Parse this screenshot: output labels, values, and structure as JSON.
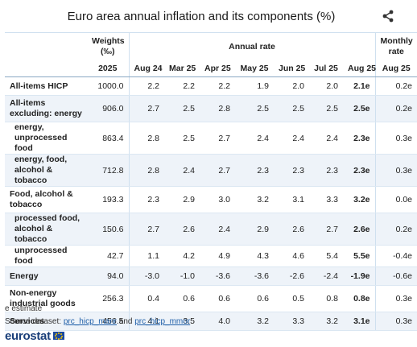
{
  "title": "Euro area annual inflation and its components (%)",
  "icons": {
    "share": "share-icon"
  },
  "headers": {
    "weights": "Weights (‰)",
    "annual_rate": "Annual rate",
    "monthly_rate": "Monthly rate",
    "weights_year": "2025",
    "months": [
      "Aug 24",
      "Mar 25",
      "Apr 25",
      "May 25",
      "Jun 25",
      "Jul 25",
      "Aug 25"
    ],
    "monthly_month": "Aug 25"
  },
  "rows": [
    {
      "label": "All-items HICP",
      "weight": "1000.0",
      "rates": [
        "2.2",
        "2.2",
        "2.2",
        "1.9",
        "2.0",
        "2.0",
        "2.1e"
      ],
      "monthly": "0.2e"
    },
    {
      "label": "All-items excluding: energy",
      "weight": "906.0",
      "rates": [
        "2.7",
        "2.5",
        "2.8",
        "2.5",
        "2.5",
        "2.5",
        "2.5e"
      ],
      "monthly": "0.2e"
    },
    {
      "label": "energy, unprocessed food",
      "weight": "863.4",
      "rates": [
        "2.8",
        "2.5",
        "2.7",
        "2.4",
        "2.4",
        "2.4",
        "2.3e"
      ],
      "monthly": "0.3e"
    },
    {
      "label": "energy, food, alcohol & tobacco",
      "weight": "712.8",
      "rates": [
        "2.8",
        "2.4",
        "2.7",
        "2.3",
        "2.3",
        "2.3",
        "2.3e"
      ],
      "monthly": "0.3e"
    },
    {
      "label": "Food, alcohol & tobacco",
      "weight": "193.3",
      "rates": [
        "2.3",
        "2.9",
        "3.0",
        "3.2",
        "3.1",
        "3.3",
        "3.2e"
      ],
      "monthly": "0.0e"
    },
    {
      "label": "processed food, alcohol & tobacco",
      "weight": "150.6",
      "rates": [
        "2.7",
        "2.6",
        "2.4",
        "2.9",
        "2.6",
        "2.7",
        "2.6e"
      ],
      "monthly": "0.2e"
    },
    {
      "label": "unprocessed food",
      "weight": "42.7",
      "rates": [
        "1.1",
        "4.2",
        "4.9",
        "4.3",
        "4.6",
        "5.4",
        "5.5e"
      ],
      "monthly": "-0.4e"
    },
    {
      "label": "Energy",
      "weight": "94.0",
      "rates": [
        "-3.0",
        "-1.0",
        "-3.6",
        "-3.6",
        "-2.6",
        "-2.4",
        "-1.9e"
      ],
      "monthly": "-0.6e"
    },
    {
      "label": "Non-energy industrial goods",
      "weight": "256.3",
      "rates": [
        "0.4",
        "0.6",
        "0.6",
        "0.6",
        "0.5",
        "0.8",
        "0.8e"
      ],
      "monthly": "0.3e"
    },
    {
      "label": "Services",
      "weight": "456.5",
      "rates": [
        "4.1",
        "3.5",
        "4.0",
        "3.2",
        "3.3",
        "3.2",
        "3.1e"
      ],
      "monthly": "0.3e"
    }
  ],
  "footer": {
    "estimate_note": "e estimate",
    "source_prefix": "Source dataset:",
    "link1": "prc_hicp_manr",
    "and": "and",
    "link2": "prc_hicp_mmor",
    "logo": "eurostat"
  }
}
